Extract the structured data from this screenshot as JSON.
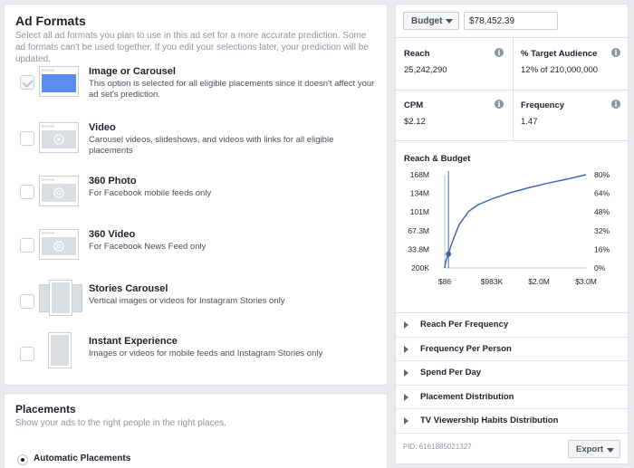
{
  "ad_formats": {
    "title": "Ad Formats",
    "description": "Select all ad formats you plan to use in this ad set for a more accurate prediction. Some ad formats can't be used together. If you edit your selections later, your prediction will be updated.",
    "items": [
      {
        "title": "Image or Carousel",
        "description": "This option is selected for all eligible placements since it doesn't affect your ad set's prediction.",
        "checked": true,
        "icon": "image-carousel-thumbnail"
      },
      {
        "title": "Video",
        "description": "Carousel videos, slideshows, and videos with links for all eligible placements",
        "checked": false,
        "icon": "video-thumbnail"
      },
      {
        "title": "360 Photo",
        "description": "For Facebook mobile feeds only",
        "checked": false,
        "icon": "360-photo-thumbnail"
      },
      {
        "title": "360 Video",
        "description": "For Facebook News Feed only",
        "checked": false,
        "icon": "360-video-thumbnail"
      },
      {
        "title": "Stories Carousel",
        "description": "Vertical images or videos for Instagram Stories only",
        "checked": false,
        "icon": "stories-carousel-thumbnail"
      },
      {
        "title": "Instant Experience",
        "description": "Images or videos for mobile feeds and Instagram Stories only",
        "checked": false,
        "icon": "instant-experience-thumbnail"
      }
    ]
  },
  "placements": {
    "title": "Placements",
    "description": "Show your ads to the right people in the right places.",
    "option_label": "Automatic Placements"
  },
  "estimate": {
    "budget_select": "Budget",
    "budget_value": "$78,452.39",
    "metrics": [
      {
        "label": "Reach",
        "value": "25,242,290"
      },
      {
        "label": "% Target Audience",
        "value": "12% of 210,000,000"
      },
      {
        "label": "CPM",
        "value": "$2.12"
      },
      {
        "label": "Frequency",
        "value": "1.47"
      }
    ],
    "chart_title": "Reach & Budget",
    "accordion": [
      "Reach Per Frequency",
      "Frequency Per Person",
      "Spend Per Day",
      "Placement Distribution",
      "TV Viewership Habits Distribution"
    ],
    "pid": "PID: 6161885021327",
    "export_label": "Export"
  },
  "colors": {
    "accent": "#4267b2",
    "thumb_blue": "#5b8def",
    "thumb_gray": "#dadde1"
  },
  "chart_data": {
    "type": "line",
    "title": "Reach & Budget",
    "x_ticks": [
      "$86",
      "$983K",
      "$2.0M",
      "$3.0M"
    ],
    "x_tick_values": [
      86,
      983000,
      2000000,
      3000000
    ],
    "y_ticks_left": [
      "168M",
      "134M",
      "101M",
      "67.3M",
      "33.8M",
      "200K"
    ],
    "y_tick_values_left": [
      168000000,
      134000000,
      101000000,
      67300000,
      33800000,
      200000
    ],
    "y_ticks_right": [
      "80%",
      "64%",
      "48%",
      "32%",
      "16%",
      "0%"
    ],
    "xlim": [
      86,
      3000000
    ],
    "ylim": [
      200000,
      168000000
    ],
    "x": [
      86,
      20000,
      78452,
      150000,
      300000,
      500000,
      700000,
      1000000,
      1400000,
      1800000,
      2200000,
      2600000,
      3000000
    ],
    "y": [
      200000,
      12000000,
      25242290,
      45000000,
      78000000,
      102000000,
      114000000,
      125000000,
      136000000,
      145000000,
      153000000,
      160000000,
      168000000
    ],
    "marker": {
      "x": 78452,
      "y": 25242290
    },
    "vertical_line_x": 78452,
    "line_color": "#4267b2"
  }
}
